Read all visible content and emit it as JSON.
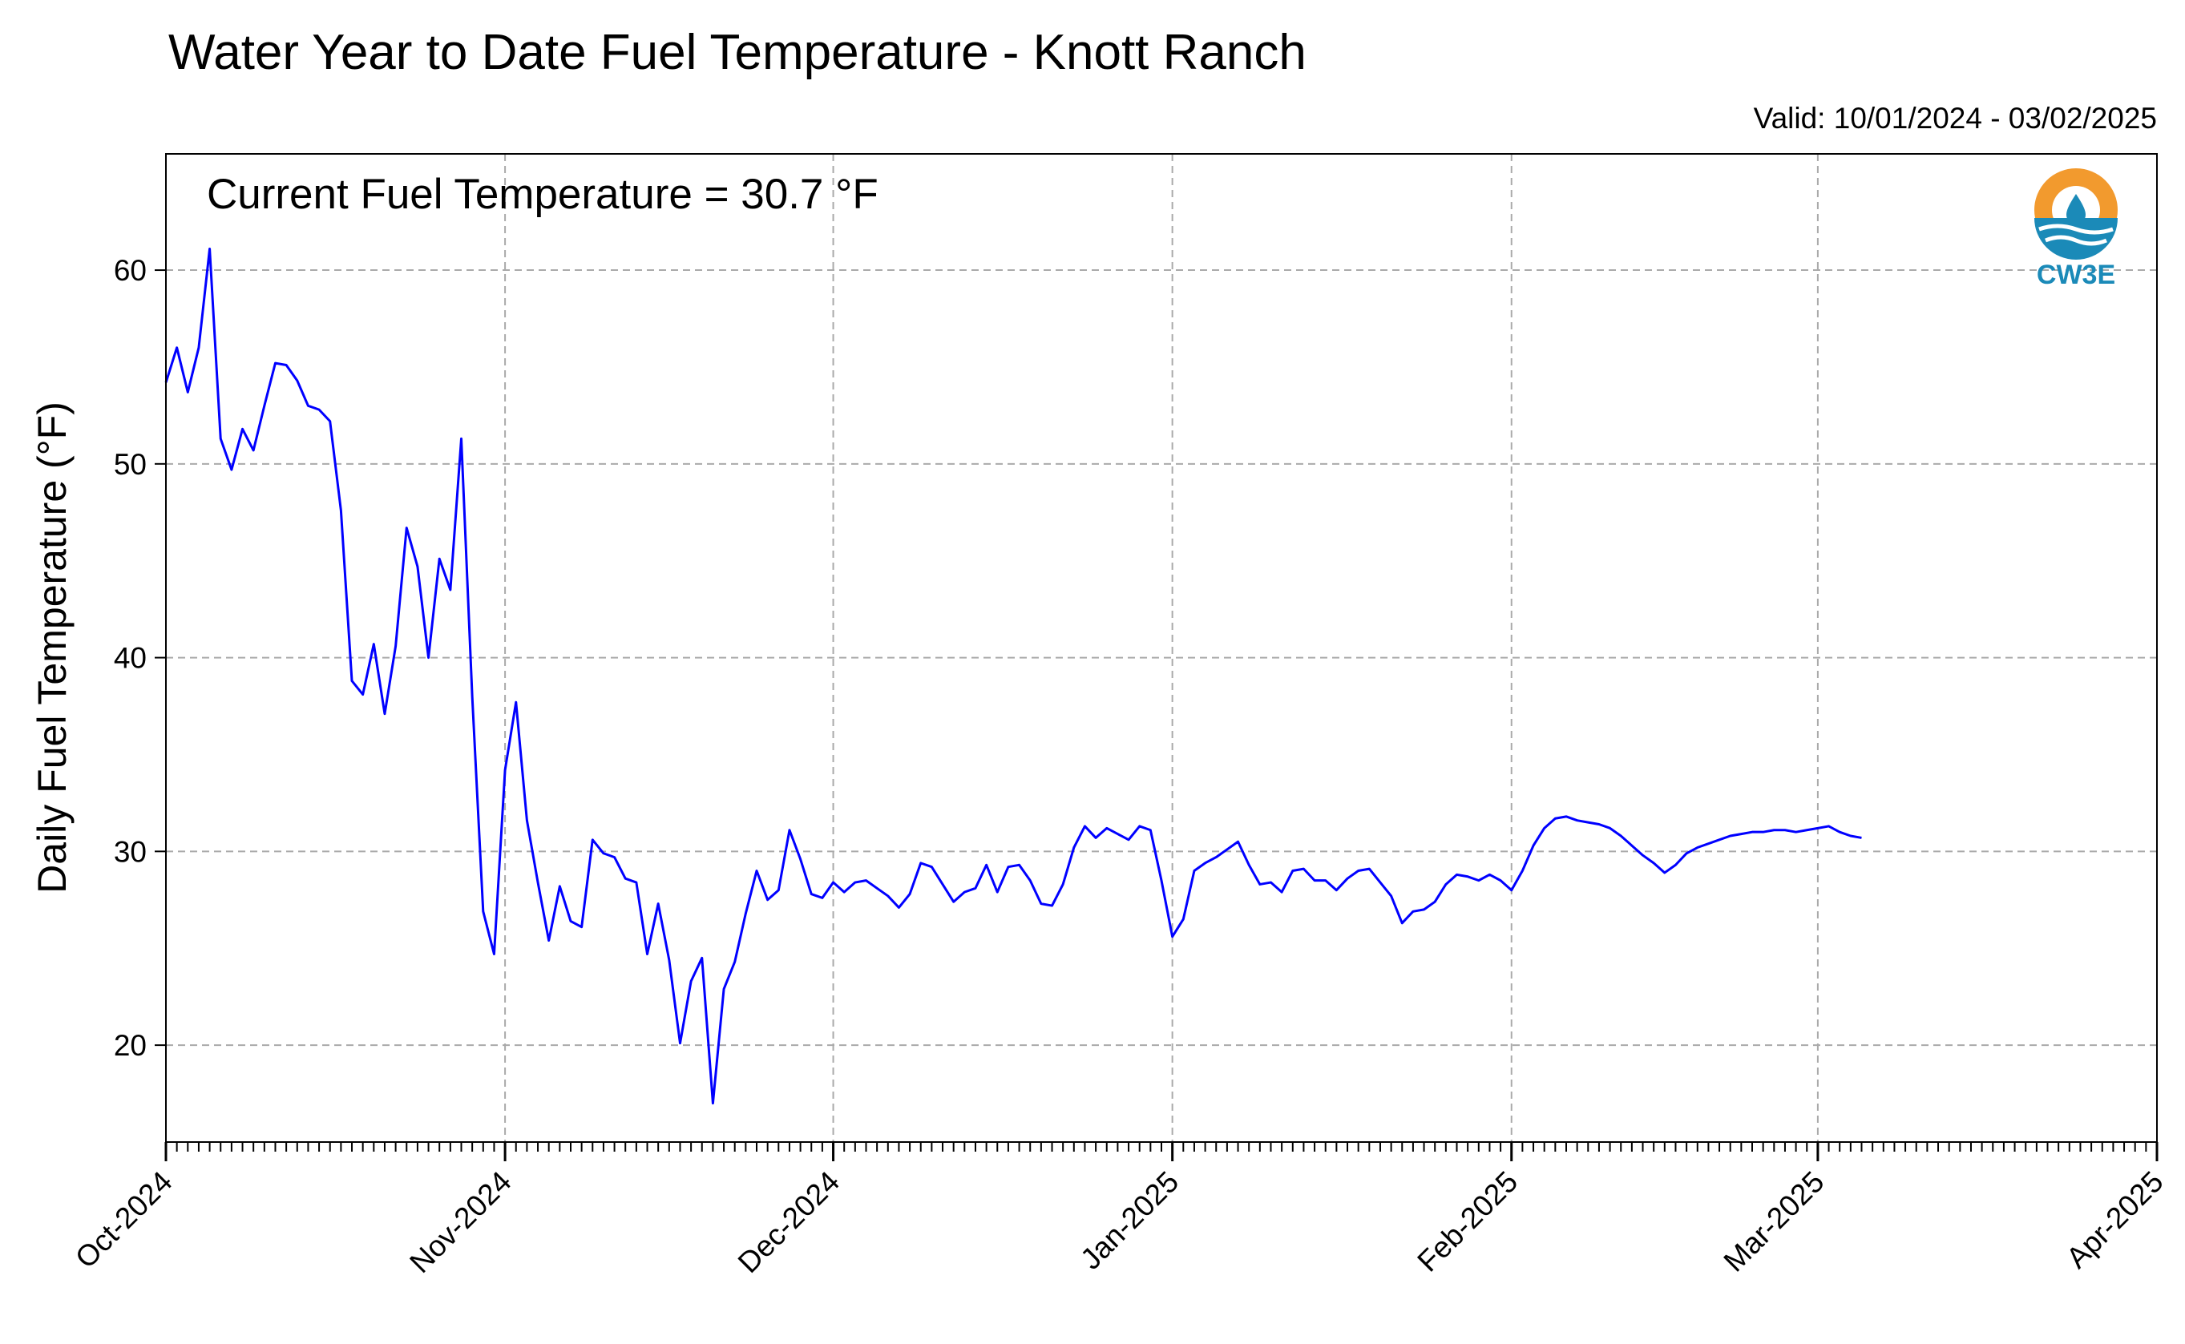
{
  "chart_data": {
    "type": "line",
    "title": "Water Year to Date Fuel Temperature - Knott Ranch",
    "subtitle": "Valid: 10/01/2024 - 03/02/2025",
    "annotation": "Current Fuel Temperature = 30.7 °F",
    "xlabel": "",
    "ylabel": "Daily Fuel Temperature (°F)",
    "x_start": "2024-10-01",
    "x_end": "2025-04-01",
    "xlim": [
      "2024-10-01",
      "2025-04-01"
    ],
    "ylim": [
      15,
      66
    ],
    "yticks": [
      20,
      30,
      40,
      50,
      60
    ],
    "xticks": [
      {
        "date": "2024-10-01",
        "label": "Oct-2024"
      },
      {
        "date": "2024-11-01",
        "label": "Nov-2024"
      },
      {
        "date": "2024-12-01",
        "label": "Dec-2024"
      },
      {
        "date": "2025-01-01",
        "label": "Jan-2025"
      },
      {
        "date": "2025-02-01",
        "label": "Feb-2025"
      },
      {
        "date": "2025-03-01",
        "label": "Mar-2025"
      },
      {
        "date": "2025-04-01",
        "label": "Apr-2025"
      }
    ],
    "grid": true,
    "series": [
      {
        "color": "#0000ff",
        "values": [
          54.2,
          56.0,
          53.7,
          56.0,
          61.1,
          51.3,
          49.7,
          51.8,
          50.7,
          53.0,
          55.2,
          55.1,
          54.3,
          53.0,
          52.8,
          52.2,
          47.6,
          38.8,
          38.1,
          40.7,
          37.1,
          40.6,
          46.7,
          44.7,
          40.0,
          45.1,
          43.5,
          51.3,
          38.0,
          26.9,
          24.7,
          34.2,
          37.7,
          31.6,
          28.4,
          25.4,
          28.2,
          26.4,
          26.1,
          30.6,
          29.9,
          29.7,
          28.6,
          28.4,
          24.7,
          27.3,
          24.4,
          20.1,
          23.3,
          24.5,
          17.0,
          22.9,
          24.3,
          26.8,
          29.0,
          27.5,
          28.0,
          31.1,
          29.6,
          27.8,
          27.6,
          28.4,
          27.9,
          28.4,
          28.5,
          28.1,
          27.7,
          27.1,
          27.8,
          29.4,
          29.2,
          28.3,
          27.4,
          27.9,
          28.1,
          29.3,
          27.9,
          29.2,
          29.3,
          28.5,
          27.3,
          27.2,
          28.3,
          30.2,
          31.3,
          30.7,
          31.2,
          30.9,
          30.6,
          31.3,
          31.1,
          28.5,
          25.6,
          26.5,
          29.0,
          29.4,
          29.7,
          30.1,
          30.5,
          29.3,
          28.3,
          28.4,
          27.9,
          29.0,
          29.1,
          28.5,
          28.5,
          28.0,
          28.6,
          29.0,
          29.1,
          28.4,
          27.7,
          26.3,
          26.9,
          27.0,
          27.4,
          28.3,
          28.8,
          28.7,
          28.5,
          28.8,
          28.5,
          28.0,
          29.0,
          30.3,
          31.2,
          31.7,
          31.8,
          31.6,
          31.5,
          31.4,
          31.2,
          30.8,
          30.3,
          29.8,
          29.4,
          28.9,
          29.3,
          29.9,
          30.2,
          30.4,
          30.6,
          30.8,
          30.9,
          31.0,
          31.0,
          31.1,
          31.1,
          31.0,
          31.1,
          31.2,
          31.3,
          31.0,
          30.8,
          30.7
        ]
      }
    ]
  },
  "logo": {
    "text": "CW3E",
    "orange": "#f29a2e",
    "teal": "#1b8ab8"
  }
}
